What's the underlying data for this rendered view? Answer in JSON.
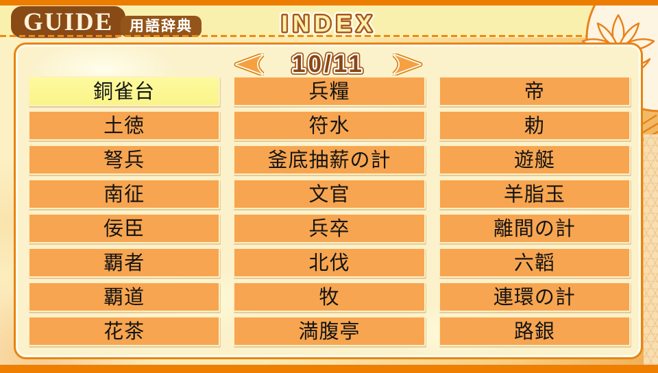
{
  "header": {
    "logo_label": "GUIDE",
    "badge_label": "用語辞典",
    "title": "INDEX"
  },
  "pager": {
    "display": "10/11",
    "current_page": "10",
    "total_pages": "11",
    "prev_icon": "left-arrow-icon",
    "next_icon": "right-arrow-icon"
  },
  "terms": {
    "selected": "銅雀台",
    "columns": [
      {
        "items": [
          "銅雀台",
          "土徳",
          "弩兵",
          "南征",
          "佞臣",
          "覇者",
          "覇道",
          "花茶"
        ]
      },
      {
        "items": [
          "兵糧",
          "符水",
          "釜底抽薪の計",
          "文官",
          "兵卒",
          "北伐",
          "牧",
          "満腹亭"
        ]
      },
      {
        "items": [
          "帝",
          "勅",
          "遊艇",
          "羊脂玉",
          "離間の計",
          "六韜",
          "連環の計",
          "路銀"
        ]
      }
    ]
  },
  "colors": {
    "accent_orange": "#ED7D00",
    "button_orange": "#F7A550",
    "selected_yellow": "#FBF68F",
    "brown": "#8B4715",
    "panel_border": "#E8830F",
    "header_bg": "#FAF0AE"
  }
}
